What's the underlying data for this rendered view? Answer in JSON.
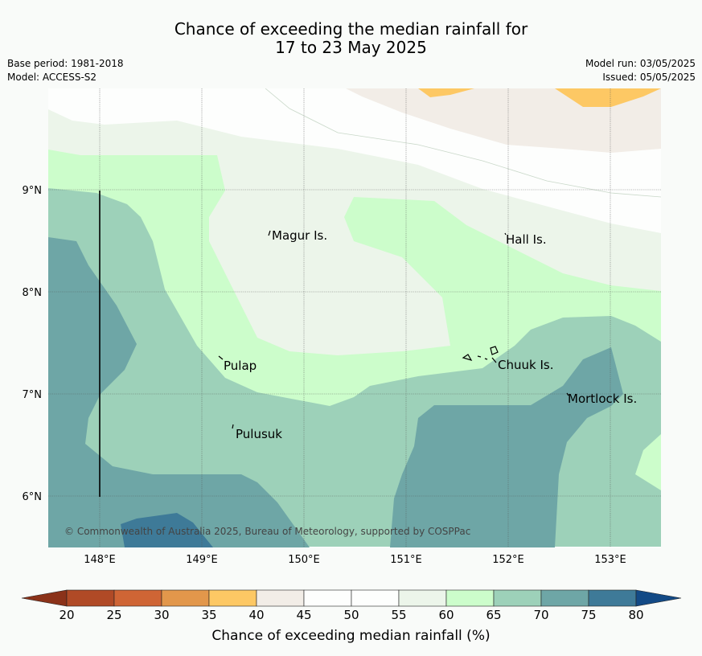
{
  "title": {
    "line1": "Chance of exceeding the median rainfall for",
    "line2": "17 to 23 May 2025"
  },
  "meta": {
    "base_period": "Base period: 1981-2018",
    "model": "Model: ACCESS-S2",
    "model_run": "Model run: 03/05/2025",
    "issued": "Issued: 05/05/2025"
  },
  "map": {
    "lon_labels": [
      "148°E",
      "149°E",
      "150°E",
      "151°E",
      "152°E",
      "153°E"
    ],
    "lat_labels": [
      "9°N",
      "8°N",
      "7°N",
      "6°N"
    ],
    "places": [
      {
        "name": "Magur Is."
      },
      {
        "name": "Hall Is."
      },
      {
        "name": "Pulap"
      },
      {
        "name": "Chuuk Is."
      },
      {
        "name": "Mortlock Is."
      },
      {
        "name": "Pulusuk"
      }
    ],
    "copyright": "© Commonwealth of Australia 2025, Bureau of Meteorology, supported by COSPPac"
  },
  "colorbar": {
    "label": "Chance of exceeding median rainfall (%)",
    "ticks": [
      "20",
      "25",
      "30",
      "35",
      "40",
      "45",
      "50",
      "55",
      "60",
      "65",
      "70",
      "75",
      "80"
    ],
    "colors": [
      "#b04a26",
      "#cf6535",
      "#e2974b",
      "#fdc864",
      "#f2ede7",
      "#fdfefd",
      "#fdfefd",
      "#ecf5ea",
      "#ccfdcb",
      "#9dd1b9",
      "#6ea6a6",
      "#3e7a98"
    ],
    "under_color": "#8b3219",
    "over_color": "#134a86"
  }
}
